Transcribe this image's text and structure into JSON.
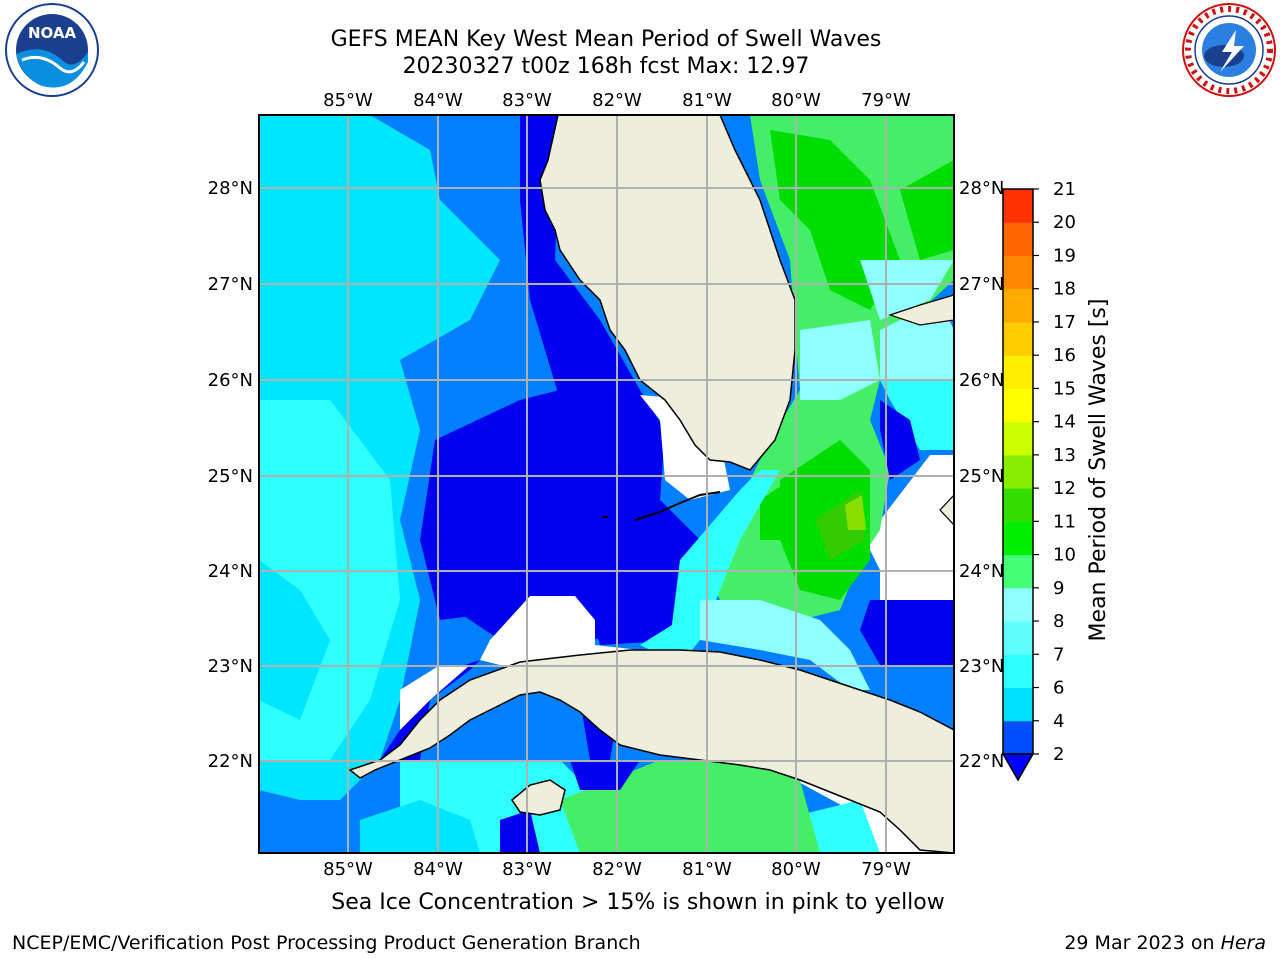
{
  "header": {
    "title_line1": "GEFS MEAN Key West Mean Period of Swell Waves",
    "title_line2": "20230327 t00z 168h fcst   Max: 12.97"
  },
  "map": {
    "lon_labels": [
      "85°W",
      "84°W",
      "83°W",
      "82°W",
      "81°W",
      "80°W",
      "79°W"
    ],
    "lat_labels": [
      "28°N",
      "27°N",
      "26°N",
      "25°N",
      "24°N",
      "23°N",
      "22°N"
    ]
  },
  "colorbar": {
    "label": "Mean Period of Swell Waves [s]",
    "ticks": [
      "2",
      "4",
      "6",
      "7",
      "8",
      "9",
      "10",
      "11",
      "12",
      "13",
      "14",
      "15",
      "16",
      "17",
      "18",
      "19",
      "20",
      "21"
    ],
    "colors": [
      "#0050ff",
      "#00e0ff",
      "#30ffff",
      "#60ffff",
      "#90ffff",
      "#44ff77",
      "#00ee00",
      "#33dd00",
      "#88ee00",
      "#ccff00",
      "#ffff00",
      "#ffee00",
      "#ffcc00",
      "#ffaa00",
      "#ff8800",
      "#ff6600",
      "#ff3300",
      "#ff0000"
    ],
    "under_color": "#0000ff"
  },
  "note": "Sea Ice Concentration > 15% is shown in pink to yellow",
  "footer": {
    "left": "NCEP/EMC/Verification Post Processing Product Generation Branch",
    "date": "29 Mar 2023 on",
    "host": "Hera"
  },
  "logos": {
    "noaa": "NOAA",
    "nws": "NATIONAL WEATHER SERVICE"
  }
}
